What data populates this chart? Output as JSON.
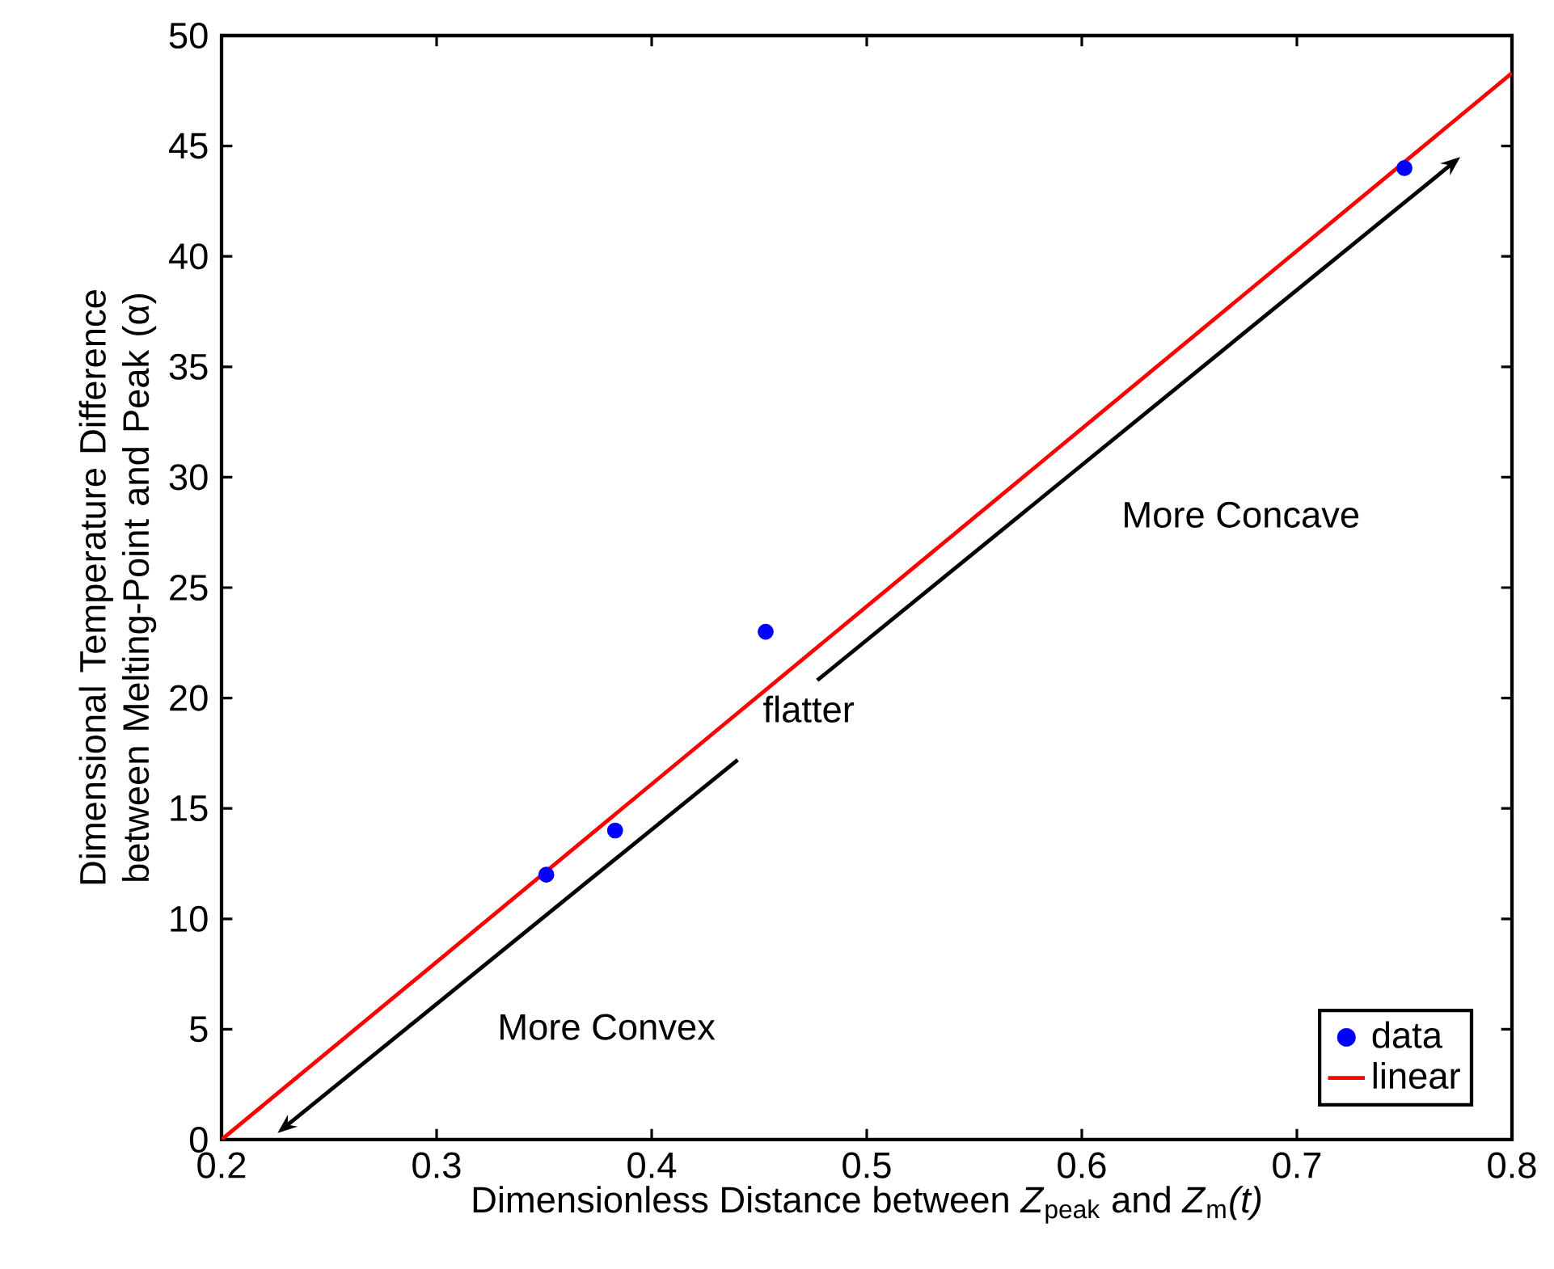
{
  "chart_data": {
    "type": "scatter",
    "xlabel": "Dimensionless Distance between *Z*$_{peak}$ and *Z*$_{m}$*(t)*",
    "ylabel": "Dimensional Temperature  Difference between Melting-Point and Peak (α)",
    "series": [
      {
        "name": "data",
        "color": "#0000ff",
        "marker": "circle",
        "x": [
          0.351,
          0.383,
          0.453,
          0.75
        ],
        "values": [
          12,
          14,
          23,
          44
        ]
      },
      {
        "name": "linear",
        "type": "line",
        "color": "#ff0000",
        "marker": "none",
        "line_style": "solid",
        "x": [
          0.2,
          0.8
        ],
        "values": [
          0,
          48.3
        ]
      }
    ],
    "xlim": [
      0.2,
      0.8
    ],
    "ylim": [
      0,
      50
    ],
    "xticks": [
      0.2,
      0.3,
      0.4,
      0.5,
      0.6,
      0.7,
      0.8
    ],
    "yticks": [
      0,
      5,
      10,
      15,
      20,
      25,
      30,
      35,
      40,
      45,
      50
    ],
    "annotations": [
      "More Convex",
      "flatter",
      "More Concave"
    ],
    "legend": "bottom right",
    "grid": false
  }
}
